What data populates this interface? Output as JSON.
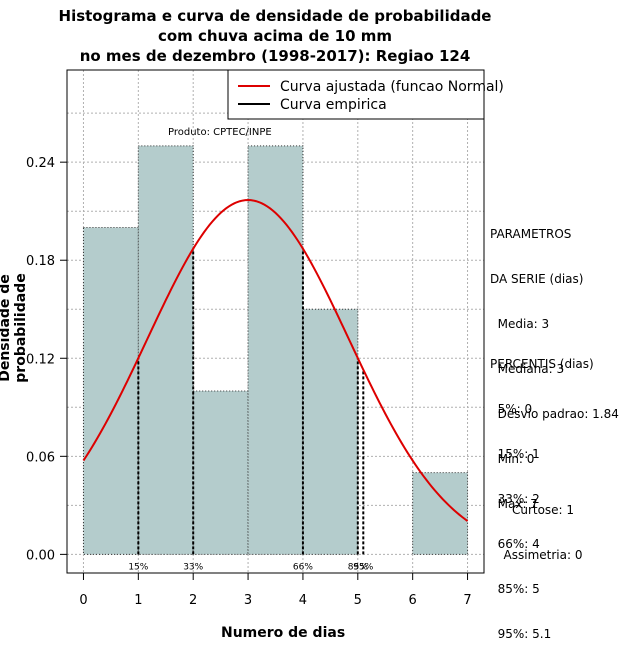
{
  "chart_data": {
    "type": "bar",
    "title_lines": [
      "Histograma e curva de densidade de probabilidade",
      "com chuva acima de 10 mm",
      "no mes de dezembro (1998-2017): Regiao 124"
    ],
    "xlabel": "Numero de dias",
    "ylabel": "Densidade de probabilidade",
    "xlim": [
      -0.3,
      7.3
    ],
    "ylim": [
      -0.0114,
      0.2964
    ],
    "x_ticks": [
      0,
      1,
      2,
      3,
      4,
      5,
      6,
      7
    ],
    "y_ticks": [
      0.0,
      0.06,
      0.12,
      0.18,
      0.24
    ],
    "y_tick_labels": [
      "0.00",
      "0.06",
      "0.12",
      "0.18",
      "0.24"
    ],
    "bins": [
      {
        "from": 0,
        "to": 1,
        "density": 0.2
      },
      {
        "from": 1,
        "to": 2,
        "density": 0.25
      },
      {
        "from": 2,
        "to": 3,
        "density": 0.1
      },
      {
        "from": 3,
        "to": 4,
        "density": 0.25
      },
      {
        "from": 4,
        "to": 5,
        "density": 0.15
      },
      {
        "from": 5,
        "to": 6,
        "density": 0.0
      },
      {
        "from": 6,
        "to": 7,
        "density": 0.05
      }
    ],
    "normal_fit": {
      "mean": 3,
      "sd": 1.84,
      "x_from": 0,
      "x_to": 7
    },
    "percentile_lines": [
      {
        "label": "15%",
        "x": 1
      },
      {
        "label": "33%",
        "x": 2
      },
      {
        "label": "66%",
        "x": 4
      },
      {
        "label": "85%",
        "x": 5
      },
      {
        "label": "95%",
        "x": 5.1
      }
    ],
    "legend": {
      "position": "top-right",
      "entries": [
        {
          "label": "Curva ajustada (funcao Normal)",
          "color": "#dd0000"
        },
        {
          "label": "Curva empirica",
          "color": "#000000"
        }
      ]
    },
    "annotation": "Produto: CPTEC/INPE",
    "grid": true,
    "colors": {
      "bar_fill": "#b4cccc",
      "fit_line": "#dd0000",
      "grid": "#b0b0b0"
    }
  },
  "side_panel": {
    "params_lines": [
      "PARAMETROS",
      "DA SERIE (dias)",
      "  Media: 3",
      "  Mediana: 3",
      "  Desvio padrao: 1.84",
      "  Min: 0",
      "  Max: 7"
    ],
    "percentis_lines": [
      "PERCENTIS (dias)",
      "  5%: 0",
      "  15%: 1",
      "  33%: 2",
      "  66%: 4",
      "  85%: 5",
      "  95%: 5.1"
    ],
    "stats_lines": [
      "Curtose: 1",
      "Assimetria: 0"
    ]
  }
}
